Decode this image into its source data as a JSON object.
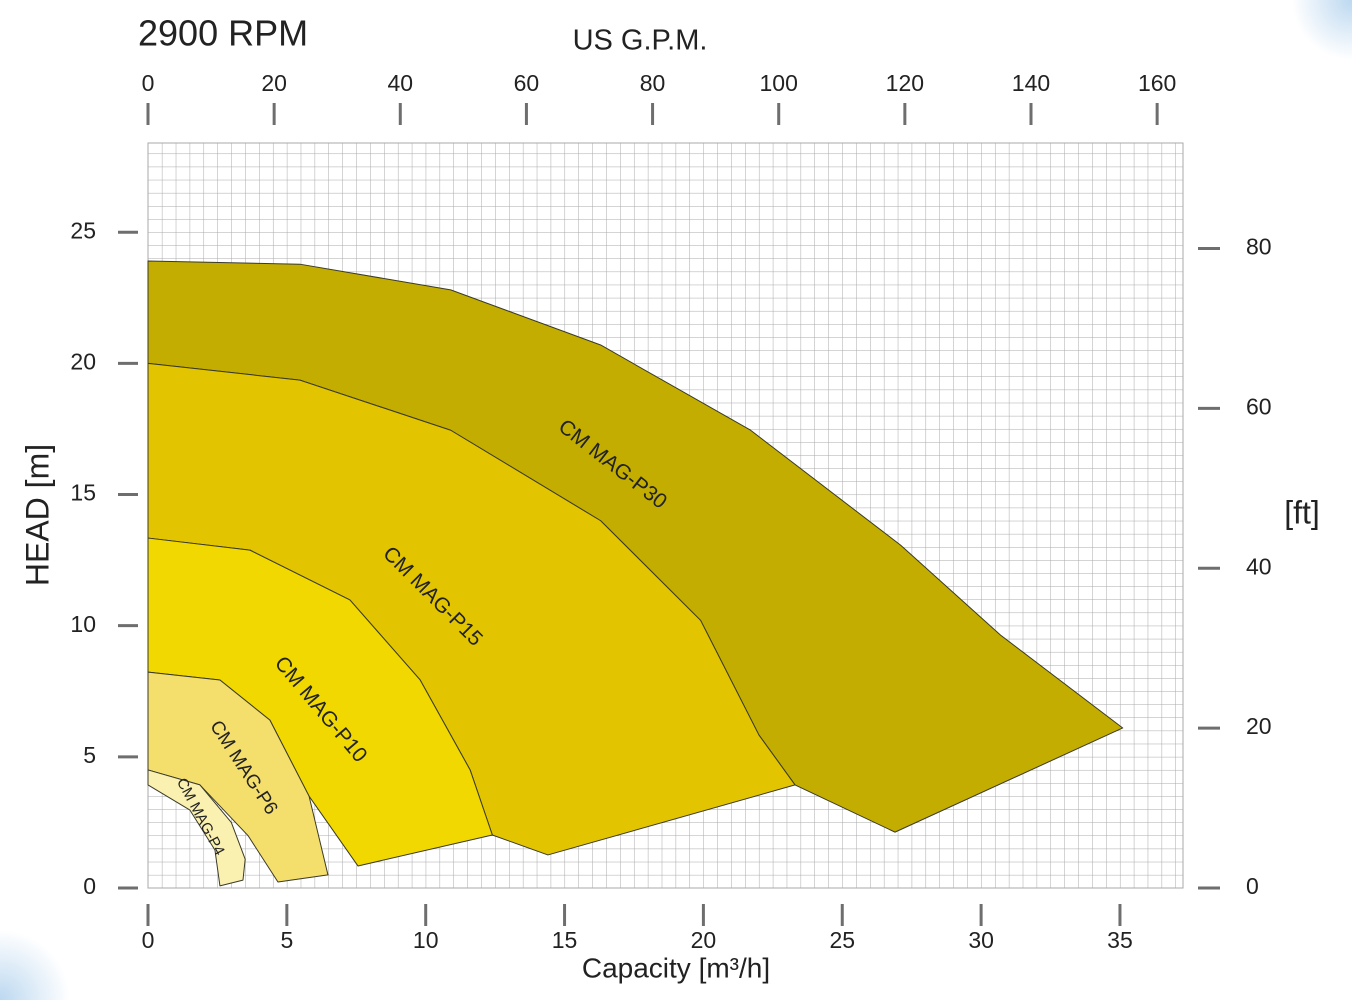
{
  "chart_data": {
    "type": "area",
    "title": "2900 RPM",
    "x2label": "US G.P.M.",
    "xlabel": "Capacity  [m³/h]",
    "ylabel": "HEAD [m]",
    "y2label": "[ft]",
    "xlim": [
      0,
      37.27
    ],
    "xticks": [
      0,
      5,
      10,
      15,
      20,
      25,
      30,
      35
    ],
    "x2lim": [
      0,
      164.1
    ],
    "x2ticks": [
      0,
      20,
      40,
      60,
      80,
      100,
      120,
      140,
      160
    ],
    "ylim": [
      0,
      28.4
    ],
    "yticks": [
      0,
      5,
      10,
      15,
      20,
      25
    ],
    "y2lim": [
      0,
      93.2
    ],
    "y2ticks": [
      0,
      20,
      40,
      60,
      80
    ],
    "grid": true,
    "series": [
      {
        "name": "CM MAG-P30",
        "color": "#c2ad00",
        "x": [
          0,
          5.47,
          10.9,
          16.3,
          21.7,
          27.1,
          30.7,
          35.1,
          26.9,
          23.3,
          22.0,
          19.9,
          16.3,
          10.9,
          5.47,
          0
        ],
        "values": [
          23.9,
          23.78,
          22.8,
          20.7,
          17.45,
          13.07,
          9.64,
          6.1,
          2.13,
          3.93,
          5.83,
          10.2,
          14.0,
          17.45,
          19.36,
          20.0
        ]
      },
      {
        "name": "CM MAG-P15",
        "color": "#e2c500",
        "x": [
          0,
          5.47,
          10.9,
          16.3,
          19.9,
          22.0,
          23.3,
          14.4,
          12.4,
          11.6,
          9.8,
          7.27,
          3.67,
          0
        ],
        "values": [
          20.0,
          19.36,
          17.45,
          14.0,
          10.2,
          5.83,
          3.93,
          1.26,
          2.02,
          4.5,
          7.93,
          10.98,
          12.88,
          13.34
        ]
      },
      {
        "name": "CM MAG-P10",
        "color": "#f0d800",
        "x": [
          0,
          3.67,
          7.27,
          9.8,
          11.6,
          12.4,
          7.56,
          5.8,
          4.39,
          2.59,
          0
        ],
        "values": [
          13.34,
          12.88,
          10.98,
          7.93,
          4.5,
          2.02,
          0.84,
          3.5,
          6.4,
          7.93,
          8.23
        ]
      },
      {
        "name": "CM MAG-P6",
        "color": "#f4de6c",
        "x": [
          0,
          2.59,
          4.39,
          5.8,
          6.48,
          4.68,
          3.6,
          1.87,
          0
        ],
        "values": [
          8.23,
          7.93,
          6.4,
          3.5,
          0.5,
          0.23,
          2.0,
          3.93,
          4.5
        ]
      },
      {
        "name": "CM MAG-P4",
        "color": "#faf0b0",
        "x": [
          0,
          1.87,
          3.0,
          3.5,
          3.42,
          2.59,
          2.41,
          1.51,
          0
        ],
        "values": [
          4.5,
          3.93,
          2.5,
          1.1,
          0.3,
          0.08,
          1.45,
          2.97,
          3.93
        ]
      }
    ]
  }
}
